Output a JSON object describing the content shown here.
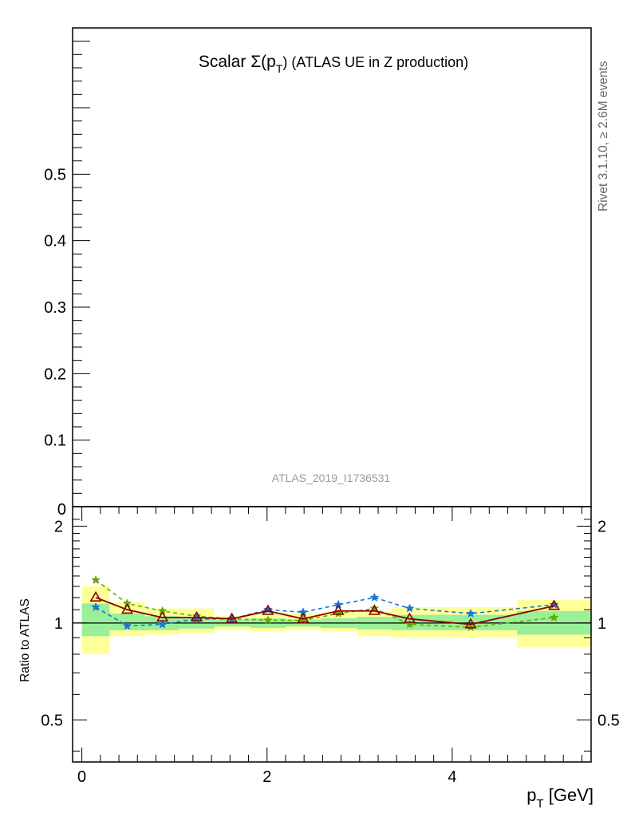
{
  "chart_data": [
    {
      "type": "line",
      "panel": "main",
      "title": "Scalar Σ(p_T) (ATLAS UE in Z production)",
      "title_parts": {
        "prefix": "Scalar ",
        "sigma": "Σ(p",
        "sub": "T",
        "suffix": ")  (ATLAS UE in Z production)"
      },
      "ylim": [
        0,
        0.72
      ],
      "yticks": [
        {
          "v": 0.1,
          "label": "0.1"
        },
        {
          "v": 0.2,
          "label": "0.2"
        },
        {
          "v": 0.3,
          "label": "0.3"
        },
        {
          "v": 0.4,
          "label": "0.4"
        },
        {
          "v": 0.5,
          "label": "0.5"
        }
      ],
      "y_zero_label": "0",
      "watermark": "ATLAS_2019_I1736531",
      "side_label": "Rivet 3.1.10, ≥ 2.6M events",
      "grid": false
    },
    {
      "type": "line",
      "panel": "ratio",
      "xlabel": "p_T [GeV]",
      "xlabel_parts": {
        "p": "p",
        "sub": "T",
        "rest": " [GeV]"
      },
      "ylabel": "Ratio to ATLAS",
      "xlim": [
        -0.1,
        5.5
      ],
      "ylim": [
        0.37,
        2.3
      ],
      "log_y": true,
      "xticks": [
        {
          "v": 0,
          "label": "0"
        },
        {
          "v": 2,
          "label": "2"
        },
        {
          "v": 4,
          "label": "4"
        }
      ],
      "yticks": [
        {
          "v": 0.5,
          "label": "0.5"
        },
        {
          "v": 1,
          "label": "1"
        },
        {
          "v": 2,
          "label": "2"
        }
      ],
      "bands": {
        "bins": [
          {
            "x0": 0.0,
            "x1": 0.3,
            "inner": [
              0.91,
              1.15
            ],
            "outer": [
              0.8,
              1.3
            ]
          },
          {
            "x0": 0.3,
            "x1": 0.68,
            "inner": [
              0.95,
              1.07
            ],
            "outer": [
              0.91,
              1.16
            ]
          },
          {
            "x0": 0.68,
            "x1": 1.05,
            "inner": [
              0.95,
              1.05
            ],
            "outer": [
              0.92,
              1.11
            ]
          },
          {
            "x0": 1.05,
            "x1": 1.43,
            "inner": [
              0.96,
              1.04
            ],
            "outer": [
              0.93,
              1.11
            ]
          },
          {
            "x0": 1.43,
            "x1": 1.82,
            "inner": [
              0.975,
              1.025
            ],
            "outer": [
              0.95,
              1.05
            ]
          },
          {
            "x0": 1.82,
            "x1": 2.2,
            "inner": [
              0.965,
              1.035
            ],
            "outer": [
              0.94,
              1.08
            ]
          },
          {
            "x0": 2.2,
            "x1": 2.58,
            "inner": [
              0.975,
              1.025
            ],
            "outer": [
              0.95,
              1.07
            ]
          },
          {
            "x0": 2.58,
            "x1": 2.97,
            "inner": [
              0.965,
              1.035
            ],
            "outer": [
              0.94,
              1.08
            ]
          },
          {
            "x0": 2.97,
            "x1": 3.35,
            "inner": [
              0.955,
              1.045
            ],
            "outer": [
              0.91,
              1.09
            ]
          },
          {
            "x0": 3.35,
            "x1": 4.7,
            "inner": [
              0.95,
              1.06
            ],
            "outer": [
              0.9,
              1.12
            ]
          },
          {
            "x0": 4.7,
            "x1": 5.5,
            "inner": [
              0.92,
              1.09
            ],
            "outer": [
              0.84,
              1.18
            ]
          }
        ],
        "inner_color": "#99f099",
        "outer_color": "#ffff99"
      },
      "reference_line": 1,
      "series": [
        {
          "color": "#8b0000",
          "marker": "triangle",
          "dash": false,
          "x": [
            0.15,
            0.49,
            0.87,
            1.24,
            1.62,
            2.01,
            2.39,
            2.77,
            3.16,
            3.54,
            4.2,
            5.1
          ],
          "y": [
            1.2,
            1.1,
            1.04,
            1.04,
            1.03,
            1.09,
            1.03,
            1.09,
            1.09,
            1.03,
            0.99,
            1.13
          ]
        },
        {
          "color": "#66aa00",
          "marker": "star",
          "dash": true,
          "x": [
            0.15,
            0.49,
            0.87,
            1.24,
            1.62,
            2.01,
            2.39,
            2.77,
            3.16,
            3.54,
            4.2,
            5.1
          ],
          "y": [
            1.36,
            1.15,
            1.09,
            1.05,
            1.03,
            1.02,
            1.02,
            1.07,
            1.11,
            0.99,
            0.97,
            1.04
          ]
        },
        {
          "color": "#1a75d6",
          "marker": "star",
          "dash": true,
          "x": [
            0.15,
            0.49,
            0.87,
            1.24,
            1.62,
            2.01,
            2.39,
            2.77,
            3.16,
            3.54,
            4.2,
            5.1
          ],
          "y": [
            1.12,
            0.98,
            0.99,
            1.03,
            1.03,
            1.1,
            1.08,
            1.14,
            1.2,
            1.11,
            1.07,
            1.14
          ]
        }
      ]
    }
  ]
}
